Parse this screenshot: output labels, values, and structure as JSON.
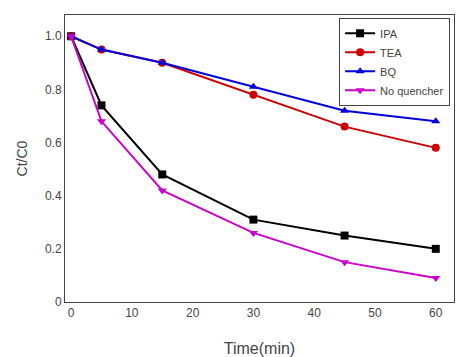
{
  "chart_data": {
    "type": "line",
    "x_label": "Time(min)",
    "y_label": "Ct/C0",
    "x": [
      0,
      5,
      15,
      30,
      45,
      60
    ],
    "series": [
      {
        "name": "IPA",
        "color": "#000000",
        "marker": "square",
        "values": [
          1.0,
          0.74,
          0.48,
          0.31,
          0.25,
          0.2
        ]
      },
      {
        "name": "TEA",
        "color": "#cc0000",
        "marker": "circle",
        "values": [
          1.0,
          0.95,
          0.9,
          0.78,
          0.66,
          0.58
        ]
      },
      {
        "name": "BQ",
        "color": "#0000dd",
        "marker": "triangle-up",
        "values": [
          1.0,
          0.95,
          0.9,
          0.81,
          0.72,
          0.68
        ]
      },
      {
        "name": "No quencher",
        "color": "#cc00cc",
        "marker": "triangle-down",
        "values": [
          1.0,
          0.68,
          0.42,
          0.26,
          0.15,
          0.09
        ]
      }
    ],
    "xlim": [
      -1,
      63
    ],
    "ylim": [
      0.0,
      1.08
    ],
    "xticks": [
      0,
      10,
      20,
      30,
      40,
      50,
      60
    ],
    "yticks": [
      0,
      0.2,
      0.4,
      0.6,
      0.8,
      {
        "value": 1.0,
        "label": "1.0"
      }
    ],
    "legend": "upper right",
    "grid": false
  }
}
